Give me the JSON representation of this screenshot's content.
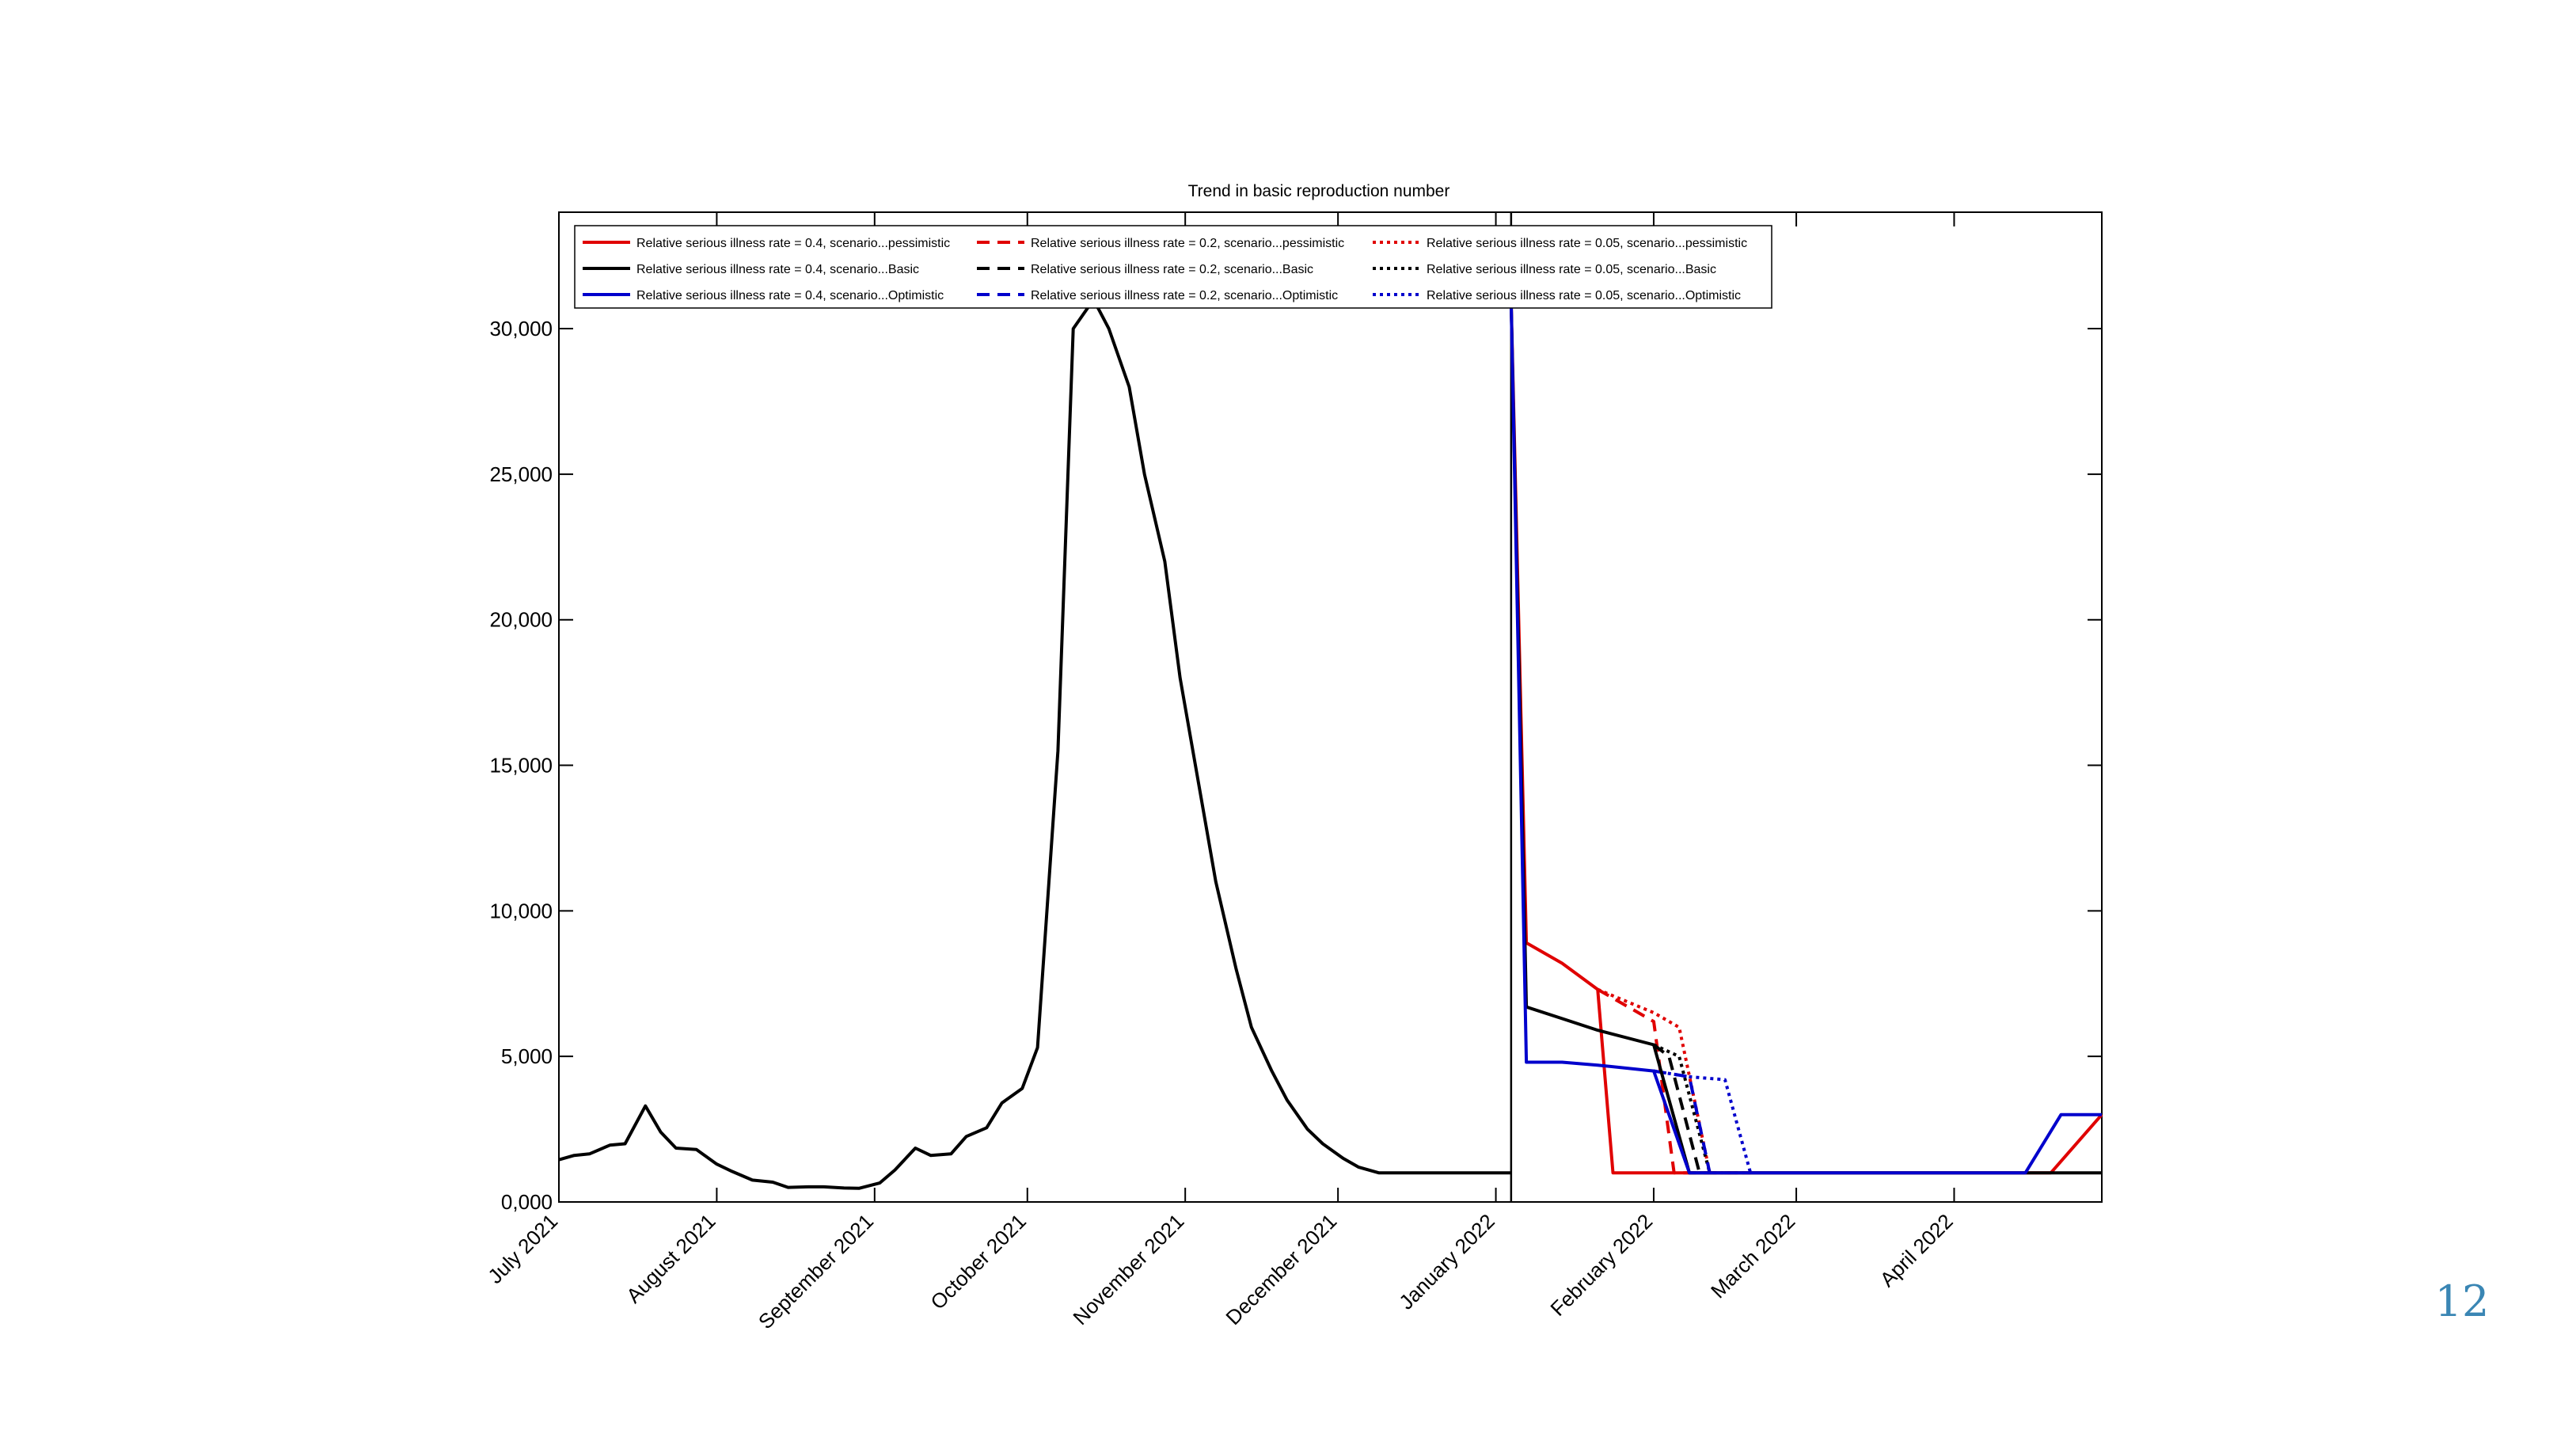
{
  "slide": {
    "page_number": "12"
  },
  "chart_data": {
    "type": "line",
    "title": "Trend in basic reproduction number",
    "xlabel": "",
    "ylabel": "",
    "x_ticks": [
      "2021-07-01",
      "2021-08-01",
      "2021-09-01",
      "2021-10-01",
      "2021-11-01",
      "2021-12-01",
      "2022-01-01",
      "2022-02-01",
      "2022-03-01",
      "2022-04-01"
    ],
    "x_tick_labels": [
      "July 2021",
      "August 2021",
      "September 2021",
      "October 2021",
      "November 2021",
      "December 2021",
      "January 2022",
      "February 2022",
      "March 2022",
      "April 2022"
    ],
    "xlim": [
      "2021-07-01",
      "2022-04-30"
    ],
    "ylim": [
      0,
      34000
    ],
    "y_ticks": [
      0,
      5000,
      10000,
      15000,
      20000,
      25000,
      30000
    ],
    "y_tick_labels": [
      "0,000",
      "5,000",
      "10,000",
      "15,000",
      "20,000",
      "25,000",
      "30,000"
    ],
    "grid": false,
    "legend_position": "top-left",
    "vertical_marker": "2022-01-04",
    "history": {
      "color": "#000000",
      "x": [
        "2021-07-01",
        "2021-07-04",
        "2021-07-07",
        "2021-07-11",
        "2021-07-14",
        "2021-07-18",
        "2021-07-21",
        "2021-07-24",
        "2021-07-28",
        "2021-08-01",
        "2021-08-04",
        "2021-08-08",
        "2021-08-12",
        "2021-08-15",
        "2021-08-19",
        "2021-08-22",
        "2021-08-26",
        "2021-08-29",
        "2021-09-02",
        "2021-09-05",
        "2021-09-09",
        "2021-09-12",
        "2021-09-16",
        "2021-09-19",
        "2021-09-23",
        "2021-09-26",
        "2021-09-30",
        "2021-10-03",
        "2021-10-07",
        "2021-10-10",
        "2021-10-14",
        "2021-10-17",
        "2021-10-21",
        "2021-10-24",
        "2021-10-28",
        "2021-10-31",
        "2021-11-04",
        "2021-11-07",
        "2021-11-11",
        "2021-11-14",
        "2021-11-18",
        "2021-11-21",
        "2021-11-25",
        "2021-11-28",
        "2021-12-02",
        "2021-12-05",
        "2021-12-09",
        "2021-12-12",
        "2021-12-16",
        "2021-12-19",
        "2021-12-23",
        "2021-12-26",
        "2021-12-30",
        "2022-01-04"
      ],
      "y": [
        1450,
        1600,
        1650,
        1950,
        2000,
        3300,
        2400,
        1850,
        1800,
        1300,
        1050,
        750,
        680,
        500,
        520,
        520,
        480,
        470,
        650,
        1100,
        1850,
        1600,
        1650,
        2250,
        2550,
        3400,
        3900,
        5300,
        15500,
        30000,
        31000,
        30000,
        28000,
        25000,
        22000,
        18000,
        14000,
        11000,
        8000,
        6000,
        4500,
        3500,
        2500,
        2000,
        1500,
        1200,
        1000,
        1000,
        1000,
        1000,
        1000,
        1000,
        1000,
        1000
      ]
    },
    "series": [
      {
        "name": "Relative serious illness rate = 0.4, scenario...pessimistic",
        "color": "#e00000",
        "dash": "solid",
        "x": [
          "2022-01-04",
          "2022-01-07",
          "2022-01-14",
          "2022-01-21",
          "2022-01-24",
          "2022-02-20",
          "2022-04-20",
          "2022-04-30"
        ],
        "y": [
          31000,
          8900,
          8200,
          7300,
          1000,
          1000,
          1000,
          3000
        ]
      },
      {
        "name": "Relative serious illness rate = 0.2, scenario...pessimistic",
        "color": "#e00000",
        "dash": "dash",
        "x": [
          "2022-01-21",
          "2022-02-01",
          "2022-02-05",
          "2022-02-20"
        ],
        "y": [
          7300,
          6200,
          1000,
          1000
        ]
      },
      {
        "name": "Relative serious illness rate = 0.05, scenario...pessimistic",
        "color": "#e00000",
        "dash": "dot",
        "x": [
          "2022-01-21",
          "2022-02-01",
          "2022-02-06",
          "2022-02-12",
          "2022-02-20"
        ],
        "y": [
          7300,
          6500,
          6000,
          1000,
          1000
        ]
      },
      {
        "name": "Relative serious illness rate = 0.4, scenario...Basic",
        "color": "#000000",
        "dash": "solid",
        "x": [
          "2022-01-04",
          "2022-01-07",
          "2022-01-14",
          "2022-01-21",
          "2022-02-01",
          "2022-02-08",
          "2022-02-20",
          "2022-04-30"
        ],
        "y": [
          31000,
          6700,
          6300,
          5900,
          5400,
          1000,
          1000,
          1000
        ]
      },
      {
        "name": "Relative serious illness rate = 0.2, scenario...Basic",
        "color": "#000000",
        "dash": "dash",
        "x": [
          "2022-02-01",
          "2022-02-04",
          "2022-02-10"
        ],
        "y": [
          5400,
          5000,
          1000
        ]
      },
      {
        "name": "Relative serious illness rate = 0.05, scenario...Basic",
        "color": "#000000",
        "dash": "dot",
        "x": [
          "2022-02-01",
          "2022-02-06",
          "2022-02-12"
        ],
        "y": [
          5400,
          5000,
          1000
        ]
      },
      {
        "name": "Relative serious illness rate = 0.4, scenario...Optimistic",
        "color": "#0000cc",
        "dash": "solid",
        "x": [
          "2022-01-04",
          "2022-01-07",
          "2022-01-14",
          "2022-01-21",
          "2022-02-01",
          "2022-02-08",
          "2022-04-15",
          "2022-04-22",
          "2022-04-30"
        ],
        "y": [
          31000,
          4800,
          4800,
          4700,
          4500,
          1000,
          1000,
          3000,
          3000
        ]
      },
      {
        "name": "Relative serious illness rate = 0.2, scenario...Optimistic",
        "color": "#0000cc",
        "dash": "dash",
        "x": [
          "2022-02-01",
          "2022-02-08",
          "2022-02-12"
        ],
        "y": [
          4500,
          4300,
          1000
        ]
      },
      {
        "name": "Relative serious illness rate = 0.05, scenario...Optimistic",
        "color": "#0000cc",
        "dash": "dot",
        "x": [
          "2022-02-01",
          "2022-02-08",
          "2022-02-15",
          "2022-02-20"
        ],
        "y": [
          4500,
          4300,
          4200,
          1000
        ]
      }
    ]
  }
}
